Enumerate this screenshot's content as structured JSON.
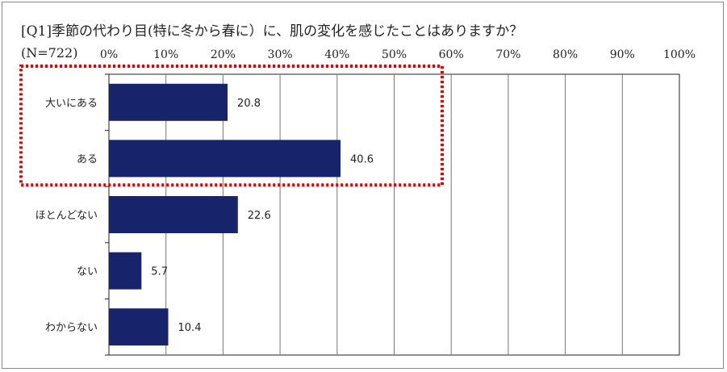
{
  "title": "[Q1]季節の代わり目(特に冬から春に）に、肌の変化を感じたことはありますか？",
  "sample": "(N=722)",
  "colors": {
    "bar": "#17246b",
    "highlight": "#e00000",
    "grid": "#777777",
    "axis": "#222222"
  },
  "chart_data": {
    "type": "bar",
    "orientation": "horizontal",
    "title": "[Q1]季節の代わり目(特に冬から春に）に、肌の変化を感じたことはありますか？",
    "categories": [
      "大いにある",
      "ある",
      "ほとんどない",
      "ない",
      "わからない"
    ],
    "values": [
      20.8,
      40.6,
      22.6,
      5.7,
      10.4
    ],
    "value_labels": [
      "20.8",
      "40.6",
      "22.6",
      "5.7",
      "10.4"
    ],
    "xlim": [
      0,
      100
    ],
    "ticks": [
      0,
      10,
      20,
      30,
      40,
      50,
      60,
      70,
      80,
      90,
      100
    ],
    "tick_labels": [
      "0%",
      "10%",
      "20%",
      "30%",
      "40%",
      "50%",
      "60%",
      "70%",
      "80%",
      "90%",
      "100%"
    ],
    "grid": true,
    "tick_position": "top",
    "highlight_box": {
      "categories": [
        "大いにある",
        "ある"
      ],
      "style": "dotted",
      "color": "#e00000"
    }
  }
}
